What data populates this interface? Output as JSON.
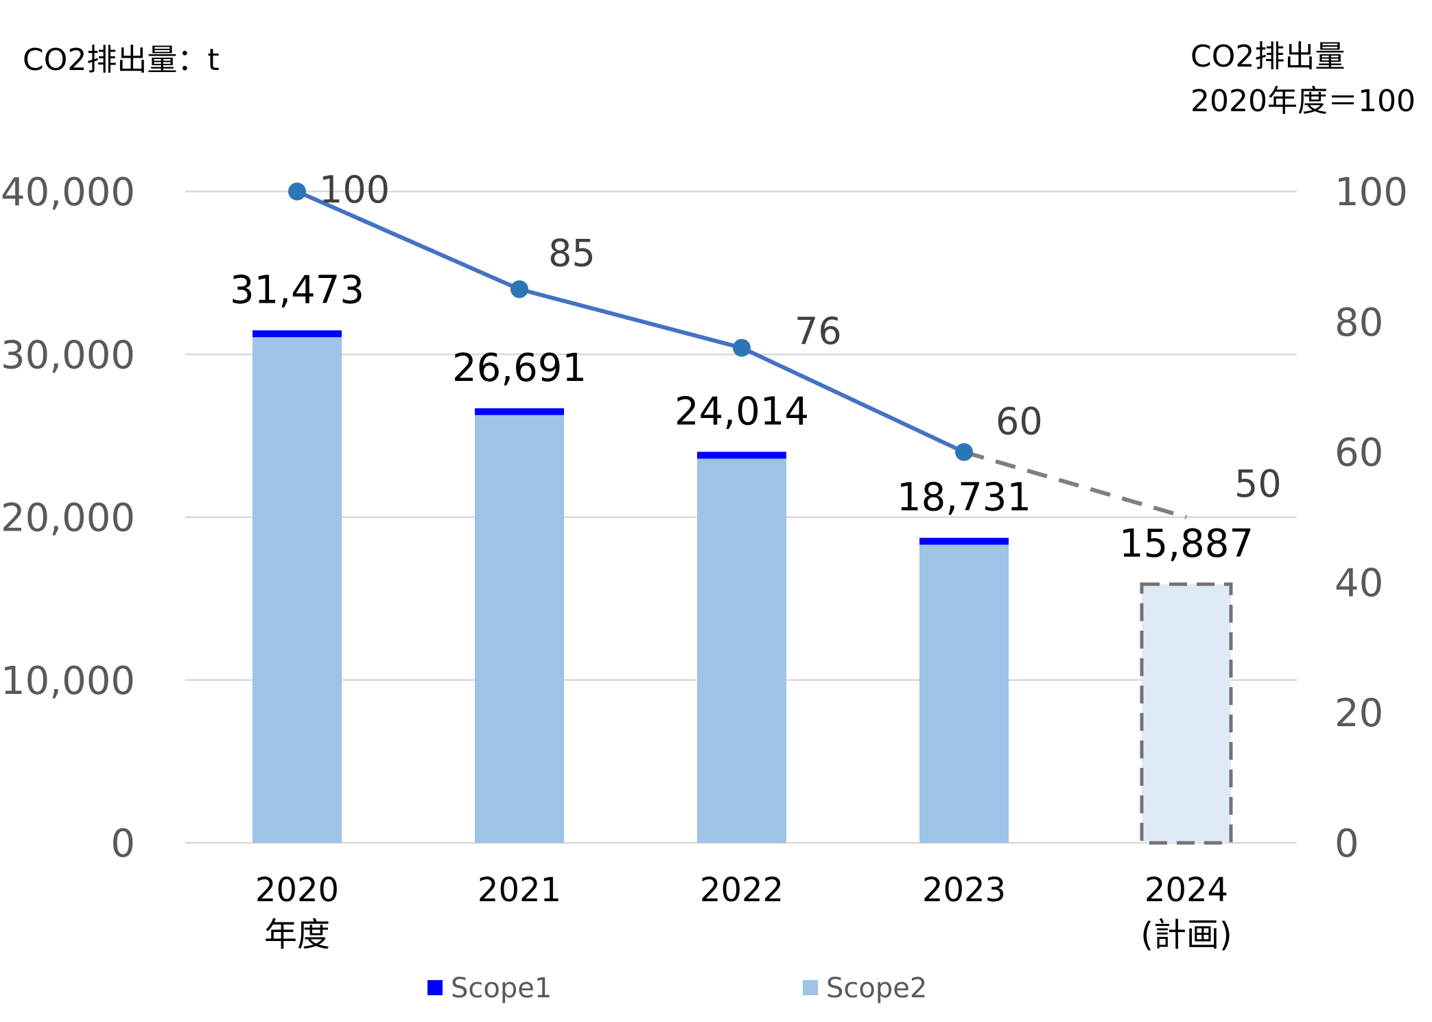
{
  "chart_data": {
    "type": "bar",
    "left_axis_title": "CO2排出量：t",
    "right_axis_title_line1": "CO2排出量",
    "right_axis_title_line2": "2020年度＝100",
    "categories": [
      {
        "line1": "2020",
        "line2": "年度"
      },
      {
        "line1": "2021",
        "line2": ""
      },
      {
        "line1": "2022",
        "line2": ""
      },
      {
        "line1": "2023",
        "line2": ""
      },
      {
        "line1": "2024",
        "line2": "(計画)"
      }
    ],
    "ylim": [
      0,
      40000
    ],
    "yticks": [
      "0",
      "10,000",
      "20,000",
      "30,000",
      "40,000"
    ],
    "y2lim": [
      0,
      100
    ],
    "y2ticks": [
      "0",
      "20",
      "40",
      "60",
      "80",
      "100"
    ],
    "grid": true,
    "series": [
      {
        "name": "Scope1",
        "color": "#0000FF",
        "values": [
          420,
          420,
          420,
          420,
          null
        ]
      },
      {
        "name": "Scope2",
        "color": "#9DC3E6",
        "values": [
          31053,
          26271,
          23594,
          18311,
          null
        ]
      }
    ],
    "planned": {
      "value": 15887,
      "fill": "#DEEBF7",
      "border": "#767171"
    },
    "totals": [
      31473,
      26691,
      24014,
      18731,
      15887
    ],
    "total_labels": [
      "31,473",
      "26,691",
      "24,014",
      "18,731",
      "15,887"
    ],
    "index_line": {
      "values": [
        100,
        85,
        76,
        60,
        50
      ],
      "labels": [
        "100",
        "85",
        "76",
        "60",
        "50"
      ],
      "color": "#4472C4",
      "marker_color": "#2E75B6",
      "planned_color": "#7F7F7F"
    },
    "legend_position": "bottom"
  }
}
